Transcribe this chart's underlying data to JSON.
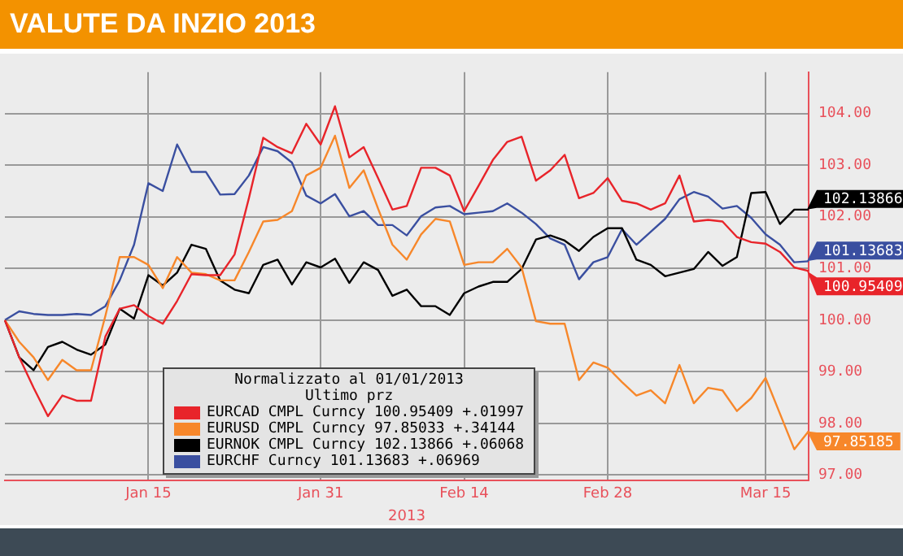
{
  "chart_data": {
    "type": "line",
    "title": "VALUTE DA INZIO 2013",
    "xlabel": "2013",
    "legend_title": "Normalizzato al 01/01/2013\nUltimo prz",
    "legend": "bottom",
    "grid": true,
    "marker": "none",
    "line_style": "solid",
    "categories": [
      null,
      null,
      null,
      null,
      null,
      null,
      null,
      null,
      null,
      null,
      "Jan 15",
      null,
      null,
      null,
      null,
      null,
      null,
      null,
      null,
      null,
      null,
      null,
      "Jan 31",
      null,
      null,
      null,
      null,
      null,
      null,
      null,
      null,
      null,
      "Feb 14",
      null,
      null,
      null,
      null,
      null,
      null,
      null,
      null,
      null,
      "Feb 28",
      null,
      null,
      null,
      null,
      null,
      null,
      null,
      null,
      null,
      null,
      "Mar 15",
      null,
      null,
      null
    ],
    "ylim": [
      96.9,
      104.8
    ],
    "yticks": [
      {
        "value": 97,
        "label": "97.00"
      },
      {
        "value": 98,
        "label": "98.00"
      },
      {
        "value": 99,
        "label": "99.00"
      },
      {
        "value": 100,
        "label": "100.00"
      },
      {
        "value": 101,
        "label": "101.00"
      },
      {
        "value": 102,
        "label": "102.00"
      },
      {
        "value": 103,
        "label": "103.00"
      },
      {
        "value": 104,
        "label": "104.00"
      }
    ],
    "series": [
      {
        "name": "EURCAD CMPL Curncy 100.95409 +.01997",
        "color": "#e8242a",
        "values": [
          100.0,
          99.28,
          98.69,
          98.14,
          98.54,
          98.44,
          98.44,
          99.68,
          100.22,
          100.29,
          100.08,
          99.93,
          100.37,
          100.89,
          100.87,
          100.87,
          101.27,
          102.36,
          103.53,
          103.35,
          103.23,
          103.8,
          103.4,
          104.14,
          103.15,
          103.35,
          102.75,
          102.14,
          102.21,
          102.95,
          102.95,
          102.8,
          102.11,
          102.6,
          103.1,
          103.45,
          103.55,
          102.7,
          102.9,
          103.2,
          102.36,
          102.46,
          102.75,
          102.31,
          102.26,
          102.14,
          102.26,
          102.8,
          101.91,
          101.94,
          101.91,
          101.61,
          101.51,
          101.48,
          101.32,
          101.02,
          100.95
        ]
      },
      {
        "name": "EURUSD CMPL Curncy 97.85033 +.34144",
        "color": "#f7872a",
        "values": [
          100.0,
          99.58,
          99.28,
          98.84,
          99.23,
          99.03,
          99.03,
          100.08,
          101.22,
          101.22,
          101.07,
          100.62,
          101.22,
          100.92,
          100.89,
          100.77,
          100.77,
          101.32,
          101.91,
          101.94,
          102.11,
          102.8,
          102.95,
          103.57,
          102.56,
          102.9,
          102.16,
          101.46,
          101.17,
          101.66,
          101.96,
          101.91,
          101.07,
          101.12,
          101.12,
          101.38,
          101.02,
          99.98,
          99.93,
          99.93,
          98.84,
          99.18,
          99.08,
          98.8,
          98.54,
          98.64,
          98.39,
          99.13,
          98.39,
          98.69,
          98.64,
          98.24,
          98.49,
          98.88,
          98.19,
          97.5,
          97.85
        ]
      },
      {
        "name": "EURNOK CMPL Curncy 102.13866 +.06068",
        "color": "#000000",
        "values": [
          100.0,
          99.28,
          99.03,
          99.48,
          99.58,
          99.43,
          99.33,
          99.53,
          100.22,
          100.03,
          100.87,
          100.67,
          100.92,
          101.46,
          101.38,
          100.77,
          100.59,
          100.52,
          101.07,
          101.17,
          100.69,
          101.12,
          101.02,
          101.19,
          100.72,
          101.12,
          100.97,
          100.47,
          100.59,
          100.27,
          100.27,
          100.1,
          100.52,
          100.65,
          100.74,
          100.74,
          100.99,
          101.56,
          101.64,
          101.54,
          101.34,
          101.61,
          101.78,
          101.78,
          101.17,
          101.07,
          100.85,
          100.92,
          100.99,
          101.32,
          101.05,
          101.22,
          102.46,
          102.48,
          101.86,
          102.14,
          102.14
        ]
      },
      {
        "name": "EURCHF Curncy 101.13683 +.06969",
        "color": "#3a4fa0",
        "values": [
          100.0,
          100.17,
          100.12,
          100.1,
          100.1,
          100.12,
          100.1,
          100.27,
          100.77,
          101.46,
          102.65,
          102.5,
          103.4,
          102.87,
          102.87,
          102.43,
          102.44,
          102.8,
          103.35,
          103.27,
          103.05,
          102.41,
          102.26,
          102.44,
          102.01,
          102.11,
          101.84,
          101.84,
          101.64,
          102.01,
          102.18,
          102.21,
          102.05,
          102.08,
          102.11,
          102.26,
          102.08,
          101.86,
          101.58,
          101.46,
          100.79,
          101.12,
          101.22,
          101.76,
          101.46,
          101.71,
          101.96,
          102.34,
          102.48,
          102.39,
          102.16,
          102.21,
          101.98,
          101.66,
          101.46,
          101.12,
          101.14
        ]
      }
    ],
    "annotations": [
      "100.95409",
      "97.85185",
      "102.13866",
      "101.13683"
    ]
  }
}
